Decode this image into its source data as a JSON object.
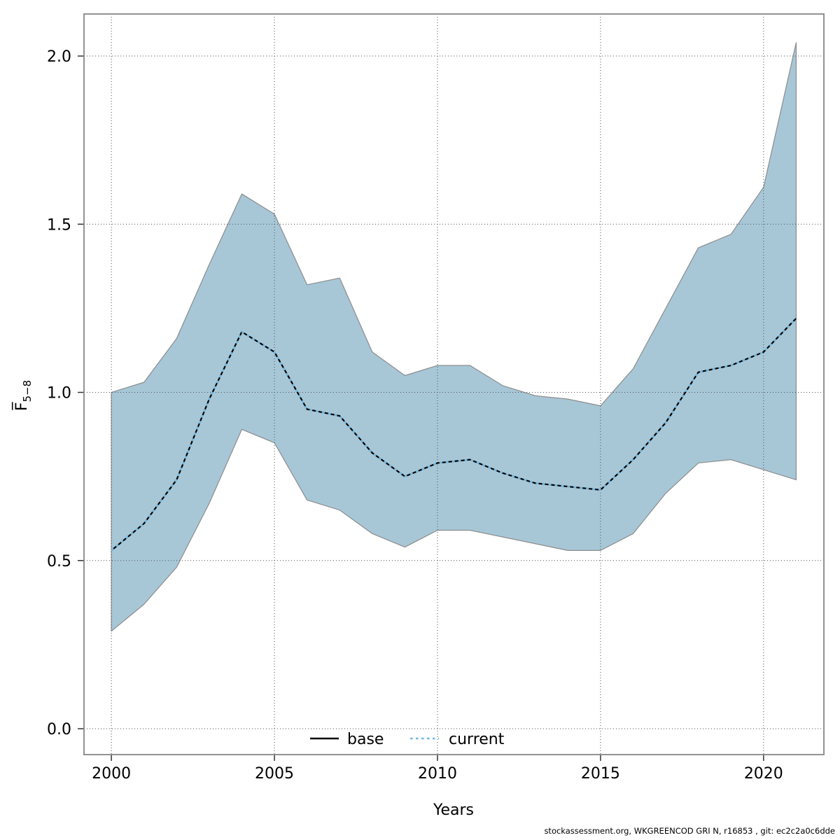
{
  "footer": "stockassessment.org, WKGREENCOD GRI N, r16853 , git: ec2c2a0c6dde",
  "chart_data": {
    "type": "line",
    "title": "",
    "xlabel": "Years",
    "ylabel_main": "F̅",
    "ylabel_sub": "5−8",
    "grid": true,
    "legend_position": "bottom-center-inside",
    "xlim": [
      1999.16,
      2021.85
    ],
    "ylim": [
      -0.077,
      2.125
    ],
    "x_ticks": [
      2000,
      2005,
      2010,
      2015,
      2020
    ],
    "x_tick_labels": [
      "2000",
      "2005",
      "2010",
      "2015",
      "2020"
    ],
    "y_ticks": [
      0.0,
      0.5,
      1.0,
      1.5,
      2.0
    ],
    "y_tick_labels": [
      "0.0",
      "0.5",
      "1.0",
      "1.5",
      "2.0"
    ],
    "x": [
      2000,
      2001,
      2002,
      2003,
      2004,
      2005,
      2006,
      2007,
      2008,
      2009,
      2010,
      2011,
      2012,
      2013,
      2014,
      2015,
      2016,
      2017,
      2018,
      2019,
      2020,
      2021
    ],
    "series": [
      {
        "name": "current",
        "style": "dotted",
        "values": [
          0.53,
          0.61,
          0.74,
          0.98,
          1.18,
          1.12,
          0.95,
          0.93,
          0.82,
          0.75,
          0.79,
          0.8,
          0.76,
          0.73,
          0.72,
          0.71,
          0.8,
          0.91,
          1.06,
          1.08,
          1.12,
          1.22
        ]
      },
      {
        "name": "base",
        "style": "solid",
        "values": [
          0.53,
          0.61,
          0.74,
          0.98,
          1.18,
          1.12,
          0.95,
          0.93,
          0.82,
          0.75,
          0.79,
          0.8,
          0.76,
          0.73,
          0.72,
          0.71,
          0.8,
          0.91,
          1.06,
          1.08,
          1.12,
          1.22
        ]
      }
    ],
    "band": {
      "name": "confidence-band",
      "lower": [
        0.29,
        0.37,
        0.48,
        0.67,
        0.89,
        0.85,
        0.68,
        0.65,
        0.58,
        0.54,
        0.59,
        0.59,
        0.57,
        0.55,
        0.53,
        0.53,
        0.58,
        0.7,
        0.79,
        0.8,
        0.77,
        0.74
      ],
      "upper": [
        1.0,
        1.03,
        1.16,
        1.38,
        1.59,
        1.53,
        1.32,
        1.34,
        1.12,
        1.05,
        1.08,
        1.08,
        1.02,
        0.99,
        0.98,
        0.96,
        1.07,
        1.25,
        1.43,
        1.47,
        1.61,
        2.04
      ]
    },
    "legend": [
      {
        "label": "base",
        "color": "#000000",
        "style": "solid"
      },
      {
        "label": "current",
        "color": "#74b6dc",
        "style": "dotted"
      }
    ],
    "colors": {
      "band_fill": "#a7c7d7",
      "band_edge": "#8c8c8c",
      "base_line": "#000000",
      "current_line": "#74b6dc",
      "grid": "#4c4c4c",
      "box": "#878787",
      "tick": "#333333"
    }
  }
}
